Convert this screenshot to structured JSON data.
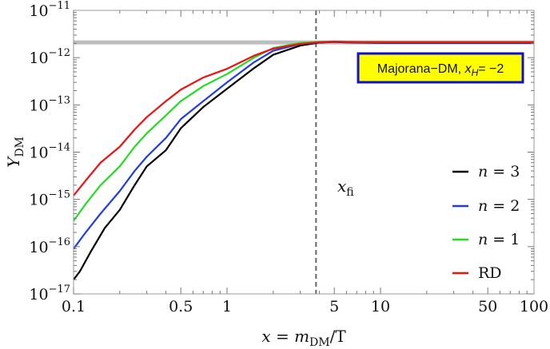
{
  "chart_data": {
    "type": "line",
    "xscale": "log",
    "yscale": "log",
    "xlim": [
      0.1,
      100
    ],
    "ylim": [
      1e-17,
      1e-11
    ],
    "x_ticks": [
      {
        "value": 0.1,
        "label": "0.1"
      },
      {
        "value": 0.5,
        "label": "0.5"
      },
      {
        "value": 1,
        "label": "1"
      },
      {
        "value": 5,
        "label": "5"
      },
      {
        "value": 10,
        "label": "10"
      },
      {
        "value": 50,
        "label": "50"
      },
      {
        "value": 100,
        "label": "100"
      }
    ],
    "y_ticks": [
      {
        "value": 1e-11,
        "base": "10",
        "exp": "−11"
      },
      {
        "value": 1e-12,
        "base": "10",
        "exp": "−12"
      },
      {
        "value": 1e-13,
        "base": "10",
        "exp": "−13"
      },
      {
        "value": 1e-14,
        "base": "10",
        "exp": "−14"
      },
      {
        "value": 1e-15,
        "base": "10",
        "exp": "−15"
      },
      {
        "value": 1e-16,
        "base": "10",
        "exp": "−16"
      },
      {
        "value": 1e-17,
        "base": "10",
        "exp": "−17"
      }
    ],
    "xlabel": {
      "pre": "x",
      "eq": " = ",
      "m": "m",
      "sub": "DM",
      "post": "/T"
    },
    "ylabel": {
      "main": "Y",
      "sub": "DM"
    },
    "observed_relic": {
      "y": 2.1e-12,
      "color": "#bdbdbd"
    },
    "freeze_in_line": {
      "x": 3.8,
      "color": "#666666"
    },
    "freeze_in_label": {
      "main": "x",
      "sub": "fi"
    },
    "annotation": {
      "text_main": "Majorana−DM, ",
      "var": "x",
      "var_sub": "H",
      "text_tail": "= −2",
      "fill": "#ffff00",
      "border": "#1010cc"
    },
    "series": [
      {
        "name": "n = 3",
        "name_var": "n",
        "name_rest": " = 3",
        "color": "#000000",
        "x": [
          0.1,
          0.11,
          0.13,
          0.16,
          0.2,
          0.25,
          0.3,
          0.4,
          0.5,
          0.7,
          1.0,
          1.5,
          2.0,
          3.0,
          4.0,
          5.0,
          6.0,
          10,
          20,
          50,
          100
        ],
        "y": [
          2e-17,
          3e-17,
          8e-17,
          2.5e-16,
          6e-16,
          2e-15,
          5e-15,
          1.1e-14,
          3.2e-14,
          9e-14,
          2.2e-13,
          6e-13,
          1.15e-12,
          1.8e-12,
          2.08e-12,
          2.15e-12,
          2.1e-12,
          2.05e-12,
          2.05e-12,
          2.05e-12,
          2.05e-12
        ]
      },
      {
        "name": "n = 2",
        "name_var": "n",
        "name_rest": " = 2",
        "color": "#1f3de0",
        "x": [
          0.1,
          0.12,
          0.15,
          0.2,
          0.25,
          0.3,
          0.4,
          0.5,
          0.7,
          1.0,
          1.5,
          2.0,
          3.0,
          4.0,
          5.0,
          6.0,
          10,
          20,
          50,
          100
        ],
        "y": [
          9e-17,
          2e-16,
          5e-16,
          1.5e-15,
          4e-15,
          8e-15,
          2e-14,
          5e-14,
          1.2e-13,
          3e-13,
          8e-13,
          1.4e-12,
          1.95e-12,
          2.1e-12,
          2.15e-12,
          2.12e-12,
          2.08e-12,
          2.08e-12,
          2.08e-12,
          2.08e-12
        ]
      },
      {
        "name": "n = 1",
        "name_var": "n",
        "name_rest": " = 1",
        "color": "#22dd22",
        "x": [
          0.1,
          0.12,
          0.15,
          0.2,
          0.25,
          0.3,
          0.4,
          0.5,
          0.7,
          1.0,
          1.5,
          2.0,
          3.0,
          4.0,
          5.0,
          6.0,
          10,
          20,
          50,
          100
        ],
        "y": [
          3.5e-16,
          8e-16,
          2e-15,
          5e-15,
          1.3e-14,
          2.5e-14,
          6e-14,
          1.2e-13,
          2.5e-13,
          4.5e-13,
          1e-12,
          1.6e-12,
          2.05e-12,
          2.15e-12,
          2.18e-12,
          2.15e-12,
          2.12e-12,
          2.12e-12,
          2.12e-12,
          2.12e-12
        ]
      },
      {
        "name": "RD",
        "name_var": "",
        "name_rest": "RD",
        "color": "#ee1111",
        "x": [
          0.1,
          0.12,
          0.15,
          0.2,
          0.25,
          0.3,
          0.4,
          0.5,
          0.7,
          1.0,
          1.5,
          2.0,
          3.0,
          4.0,
          5.0,
          6.0,
          10,
          20,
          50,
          100
        ],
        "y": [
          1.2e-15,
          2.5e-15,
          6e-15,
          1.3e-14,
          3e-14,
          5.5e-14,
          1.2e-13,
          2.1e-13,
          3.8e-13,
          5.8e-13,
          1.1e-12,
          1.55e-12,
          1.95e-12,
          2.12e-12,
          2.18e-12,
          2.15e-12,
          2.13e-12,
          2.13e-12,
          2.13e-12,
          2.13e-12
        ]
      }
    ]
  }
}
